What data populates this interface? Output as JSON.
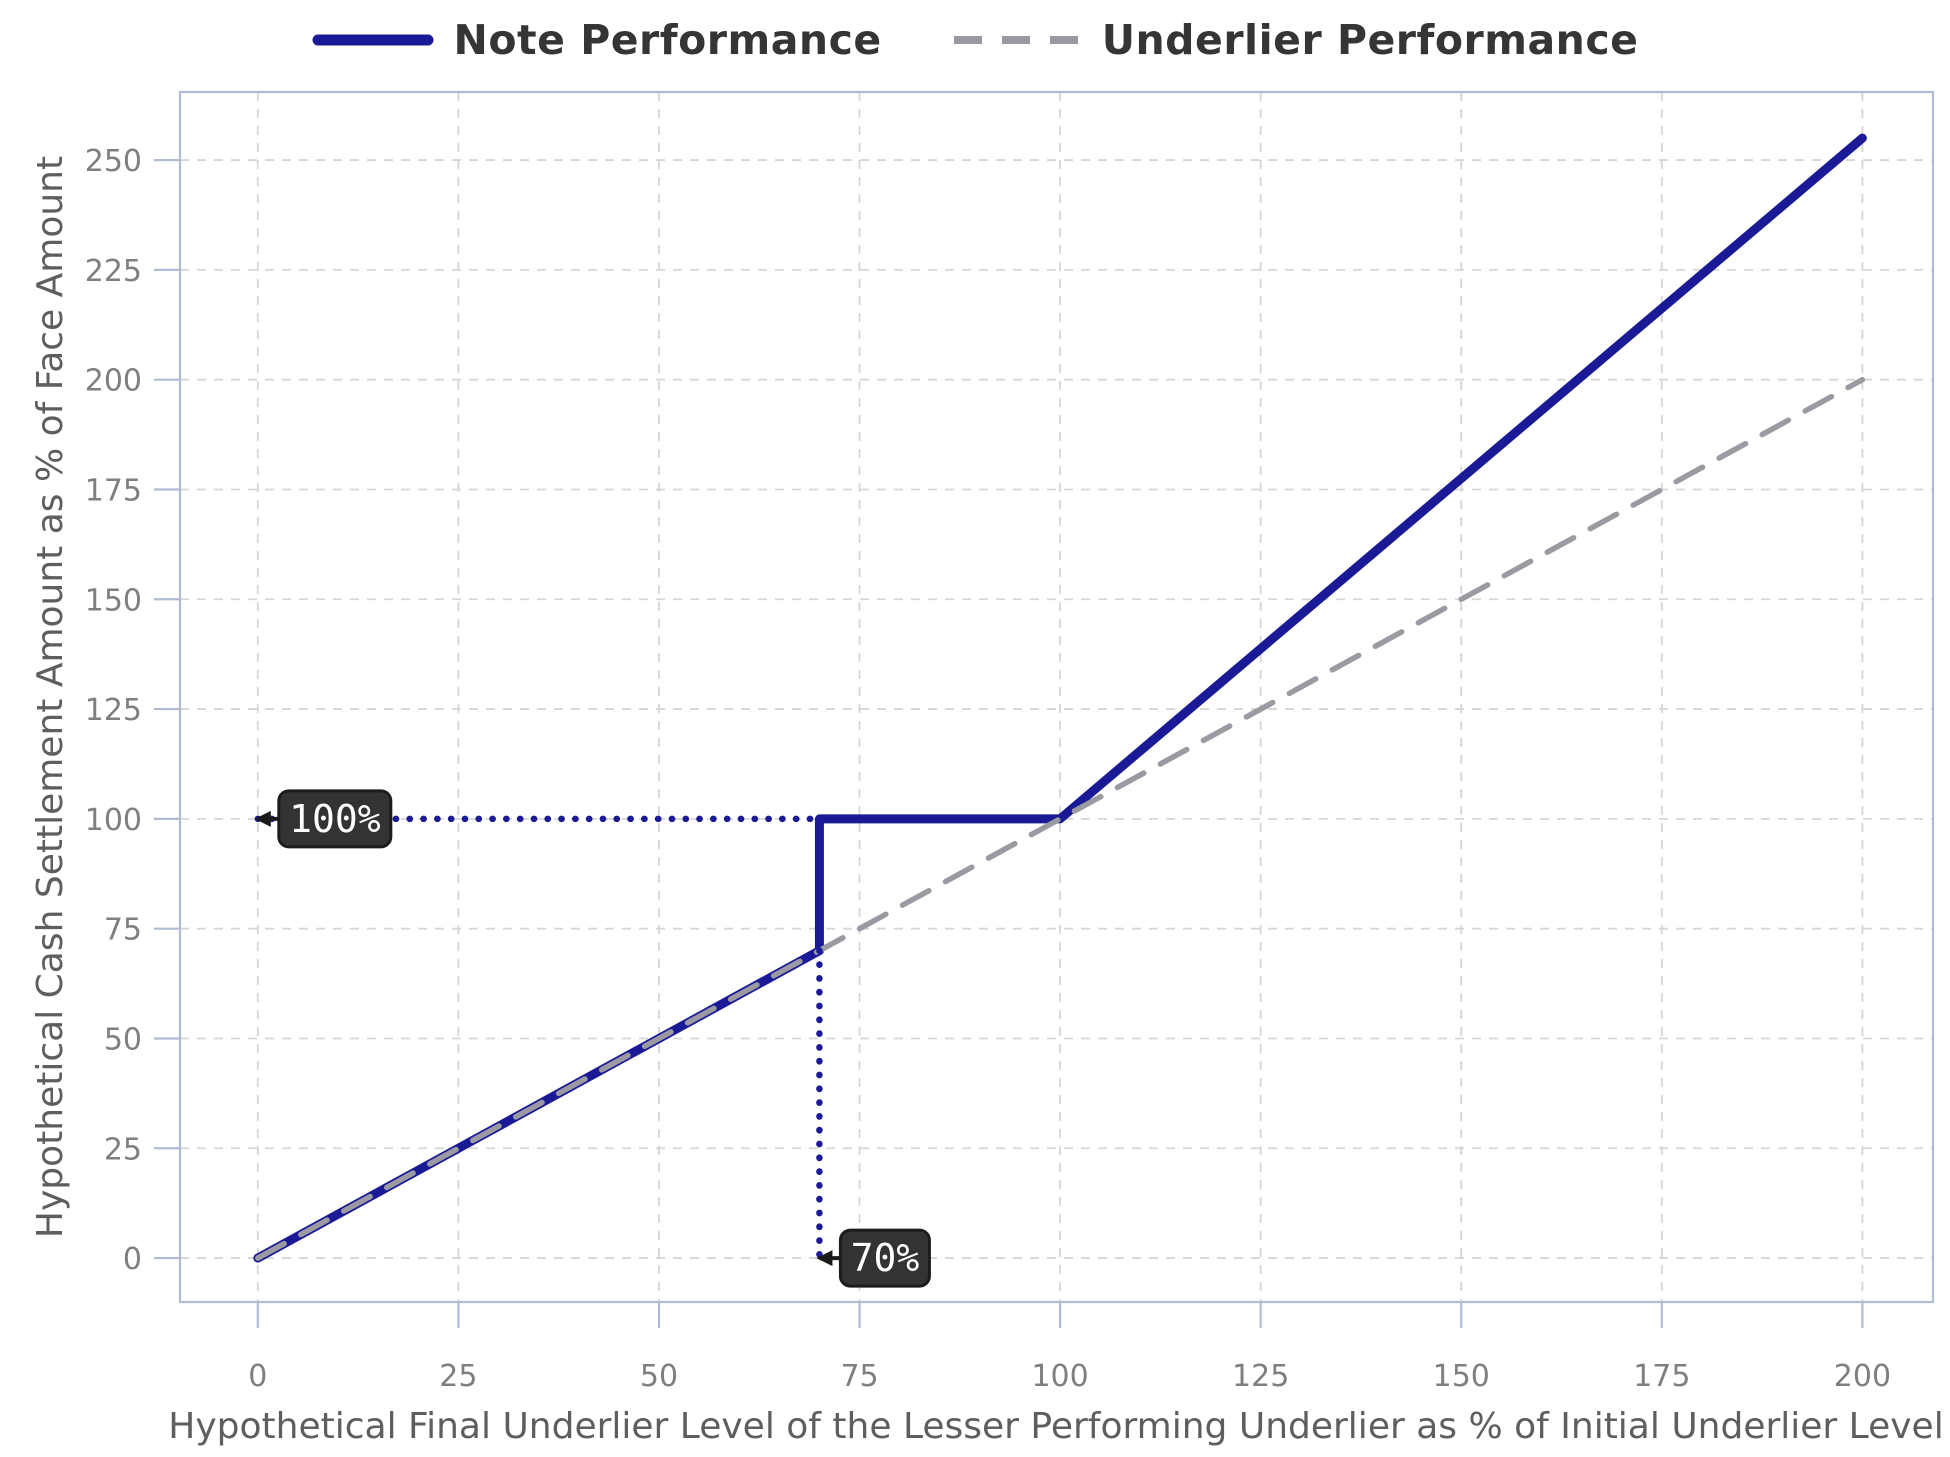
{
  "chart_data": {
    "type": "line",
    "title": "",
    "xlabel": "Hypothetical Final Underlier Level of the Lesser Performing Underlier as % of Initial Underlier Level",
    "ylabel": "Hypothetical Cash Settlement Amount as % of Face Amount",
    "xlim": [
      -9.7,
      208.8
    ],
    "ylim": [
      -10,
      265.5
    ],
    "xticks": [
      0,
      25,
      50,
      75,
      100,
      125,
      150,
      175,
      200
    ],
    "yticks": [
      0,
      25,
      50,
      75,
      100,
      125,
      150,
      175,
      200,
      225,
      250
    ],
    "grid": true,
    "legend_position": "top-center",
    "series": [
      {
        "name": "Note Performance",
        "style": "solid",
        "color": "#1a1a96",
        "width": 9,
        "points": [
          [
            0,
            0
          ],
          [
            70,
            70
          ],
          [
            70,
            100
          ],
          [
            100,
            100
          ],
          [
            200,
            255
          ]
        ]
      },
      {
        "name": "Underlier Performance",
        "style": "dashed",
        "color": "#9a9aa2",
        "width": 5.5,
        "points": [
          [
            0,
            0
          ],
          [
            200,
            200
          ]
        ]
      }
    ],
    "annotations": [
      {
        "label": "100%",
        "target": [
          0,
          100
        ],
        "dotted_line": [
          [
            0,
            100
          ],
          [
            70,
            100
          ]
        ]
      },
      {
        "label": "70%",
        "target": [
          70,
          0
        ],
        "dotted_line": [
          [
            70,
            70
          ],
          [
            70,
            0
          ]
        ]
      }
    ]
  },
  "colors": {
    "background": "#ffffff",
    "note_line": "#1a1a96",
    "underlier_line": "#9a9aa2",
    "grid_line": "#d6d6d6",
    "spine": "#aebdd3",
    "tick_label": "#7f7f7f",
    "axis_title": "#5e5e5e",
    "legend_text": "#353535",
    "callout_box_fill": "#333333",
    "callout_box_border": "#1c1c1c",
    "callout_text": "#ffffff",
    "callout_arrow": "#1a1a1a",
    "dotted_guide": "#1a1a96"
  }
}
